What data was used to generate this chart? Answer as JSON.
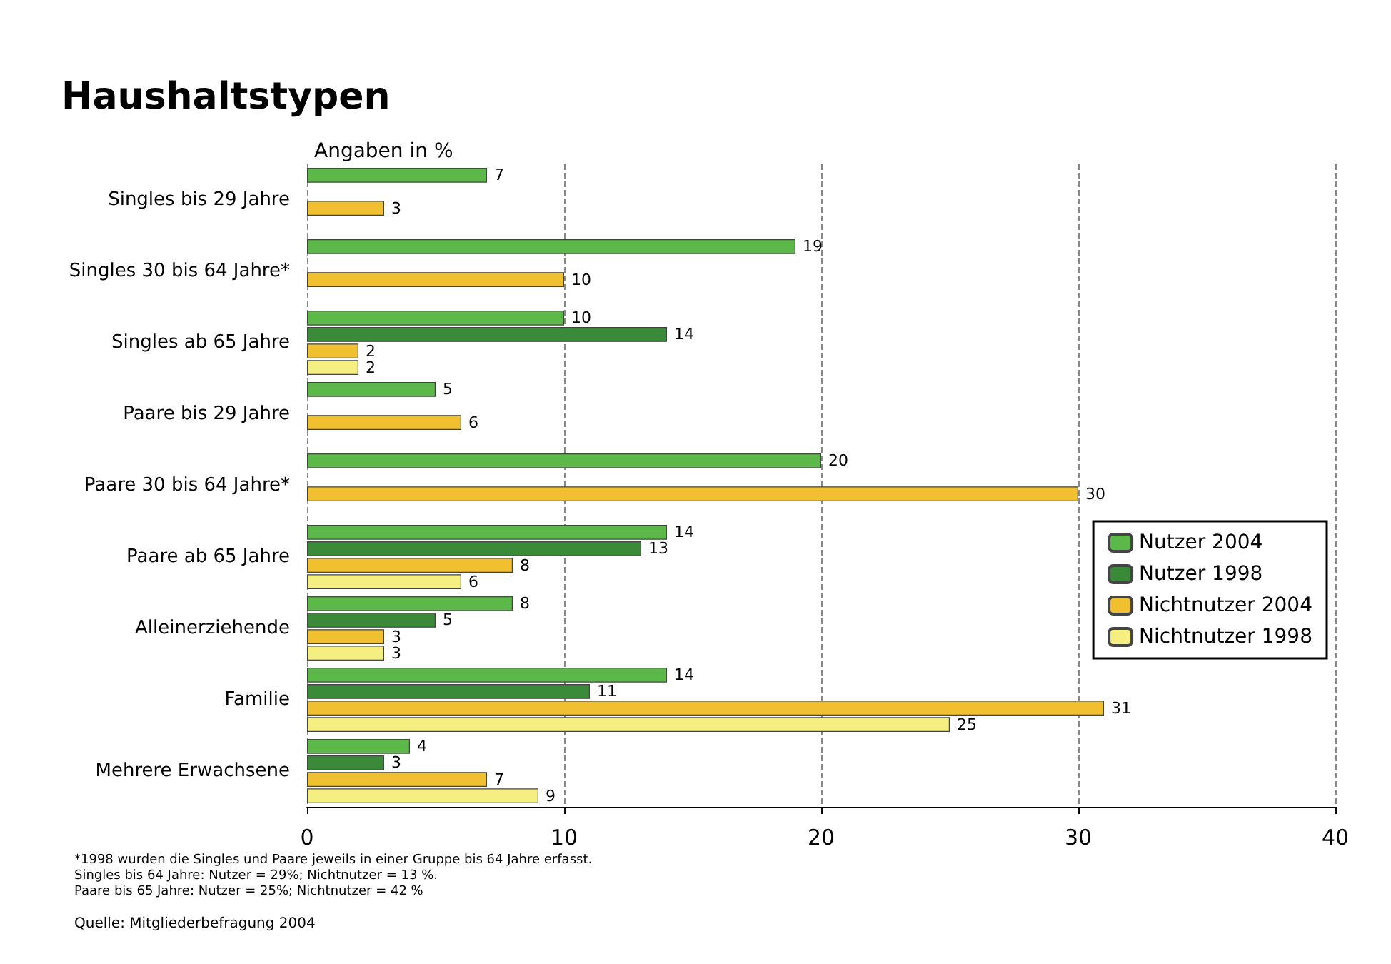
{
  "chart_data": {
    "type": "bar",
    "orientation": "horizontal",
    "title": "Haushaltstypen",
    "xlabel": "Angaben in %",
    "categories": [
      "Singles bis 29 Jahre",
      "Singles 30 bis 64 Jahre*",
      "Singles ab 65 Jahre",
      "Paare bis 29 Jahre",
      "Paare 30 bis 64 Jahre*",
      "Paare ab 65 Jahre",
      "Alleinerziehende",
      "Familie",
      "Mehrere Erwachsene"
    ],
    "series": [
      {
        "name": "Nutzer 2004",
        "color": "#5cb848",
        "values": [
          7,
          19,
          10,
          5,
          20,
          14,
          8,
          14,
          4
        ]
      },
      {
        "name": "Nutzer 1998",
        "color": "#3a8a3a",
        "values": [
          null,
          null,
          14,
          null,
          null,
          13,
          5,
          11,
          3
        ]
      },
      {
        "name": "Nichtnutzer 2004",
        "color": "#f0c030",
        "values": [
          3,
          10,
          2,
          6,
          30,
          8,
          3,
          31,
          7
        ]
      },
      {
        "name": "Nichtnutzer 1998",
        "color": "#f5ee80",
        "values": [
          null,
          null,
          2,
          null,
          null,
          6,
          3,
          25,
          9
        ]
      }
    ],
    "xlim": [
      0,
      40
    ],
    "xticks": [
      0,
      10,
      20,
      30,
      40
    ],
    "grid": "x",
    "legend": "right",
    "data_labels": true,
    "annotations": [
      "*1998 wurden die Singles und Paare jeweils in einer Gruppe bis 64 Jahre erfasst.",
      "Singles bis 64 Jahre: Nutzer = 29%; Nichtnutzer = 13 %.",
      "Paare bis 65 Jahre: Nutzer = 25%; Nichtnutzer = 42 %",
      "Quelle: Mitgliederbefragung 2004"
    ]
  }
}
